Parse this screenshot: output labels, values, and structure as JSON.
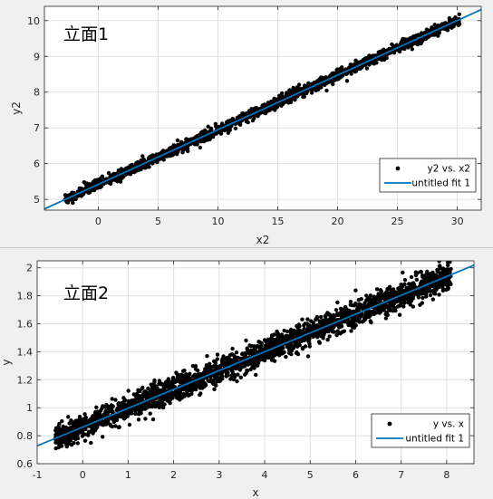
{
  "colors": {
    "background": "#f0f0f0",
    "axes_bg": "#ffffff",
    "grid": "#dfdfdf",
    "points": "#000000",
    "fit_line": "#0072bd"
  },
  "chart_data": [
    {
      "type": "scatter",
      "overlay_label": "立面1",
      "title": "",
      "xlabel": "x2",
      "ylabel": "y2",
      "xlim": [
        -4.5,
        32
      ],
      "ylim": [
        4.7,
        10.4
      ],
      "xticks": [
        0,
        5,
        10,
        15,
        20,
        25,
        30
      ],
      "yticks": [
        5,
        6,
        7,
        8,
        9,
        10
      ],
      "grid": true,
      "legend_placement": "bottom-right",
      "scatter_series": {
        "name": "y2 vs. x2",
        "x_range": [
          -2.8,
          30.2
        ],
        "approx_trend": {
          "slope": 0.1528,
          "intercept": 5.42
        },
        "noise": 0.07
      },
      "fit_series": {
        "name": "untitled fit 1",
        "slope": 0.1528,
        "intercept": 5.42
      }
    },
    {
      "type": "scatter",
      "overlay_label": "立面2",
      "title": "",
      "xlabel": "x",
      "ylabel": "y",
      "xlim": [
        -1,
        8.6
      ],
      "ylim": [
        0.6,
        2.05
      ],
      "xticks": [
        -1,
        0,
        1,
        2,
        3,
        4,
        5,
        6,
        7,
        8
      ],
      "yticks": [
        0.6,
        0.8,
        1,
        1.2,
        1.4,
        1.6,
        1.8,
        2
      ],
      "grid": true,
      "legend_placement": "bottom-right",
      "scatter_series": {
        "name": "y vs. x",
        "x_range": [
          -0.6,
          8.1
        ],
        "approx_trend": {
          "slope": 0.1345,
          "intercept": 0.862
        },
        "noise": 0.045
      },
      "fit_series": {
        "name": "untitled fit 1",
        "slope": 0.1345,
        "intercept": 0.862
      }
    }
  ]
}
